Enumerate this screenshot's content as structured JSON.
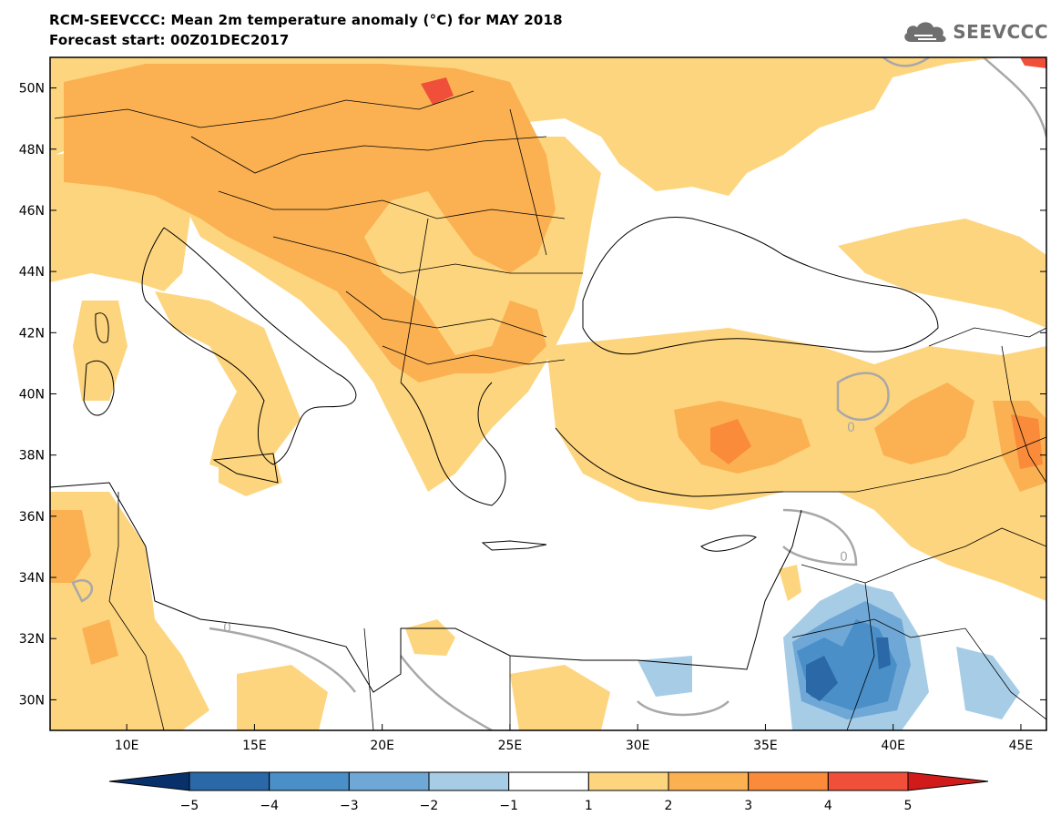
{
  "title_line1": "RCM-SEEVCCC: Mean 2m temperature anomaly (°C) for MAY 2018",
  "title_line2": "Forecast start: 00Z01DEC2017",
  "logo_text": "SEEVCCC",
  "map": {
    "lon_range": [
      7,
      46
    ],
    "lat_range": [
      29,
      51
    ],
    "lon_labels": [
      {
        "v": 10,
        "t": "10E"
      },
      {
        "v": 15,
        "t": "15E"
      },
      {
        "v": 20,
        "t": "20E"
      },
      {
        "v": 25,
        "t": "25E"
      },
      {
        "v": 30,
        "t": "30E"
      },
      {
        "v": 35,
        "t": "35E"
      },
      {
        "v": 40,
        "t": "40E"
      },
      {
        "v": 45,
        "t": "45E"
      }
    ],
    "lat_labels": [
      {
        "v": 30,
        "t": "30N"
      },
      {
        "v": 32,
        "t": "32N"
      },
      {
        "v": 34,
        "t": "34N"
      },
      {
        "v": 36,
        "t": "36N"
      },
      {
        "v": 38,
        "t": "38N"
      },
      {
        "v": 40,
        "t": "40N"
      },
      {
        "v": 42,
        "t": "42N"
      },
      {
        "v": 44,
        "t": "44N"
      },
      {
        "v": 46,
        "t": "46N"
      },
      {
        "v": 48,
        "t": "48N"
      },
      {
        "v": 50,
        "t": "50N"
      }
    ],
    "zero_contour_label": "0"
  },
  "colorbar": {
    "labels": [
      "−5",
      "−4",
      "−3",
      "−2",
      "−1",
      "1",
      "2",
      "3",
      "4",
      "5"
    ],
    "colors": [
      "#08306b",
      "#2a68a8",
      "#4a8fc8",
      "#6fa8d6",
      "#a7cde6",
      "#ffffff",
      "#fdd57e",
      "#fbb152",
      "#f98b3a",
      "#f0503a",
      "#d11b1b"
    ]
  },
  "colors": {
    "anom_1_2": "#fdd57e",
    "anom_2_3": "#fbb152",
    "anom_3_4": "#f98b3a",
    "anom_4_5": "#f0503a",
    "anom_m1_m2": "#a7cde6",
    "anom_m2_m3": "#6fa8d6",
    "anom_m3_m4": "#4a8fc8",
    "anom_m4_m5": "#2a68a8",
    "zero_contour": "#a8a8a8"
  }
}
